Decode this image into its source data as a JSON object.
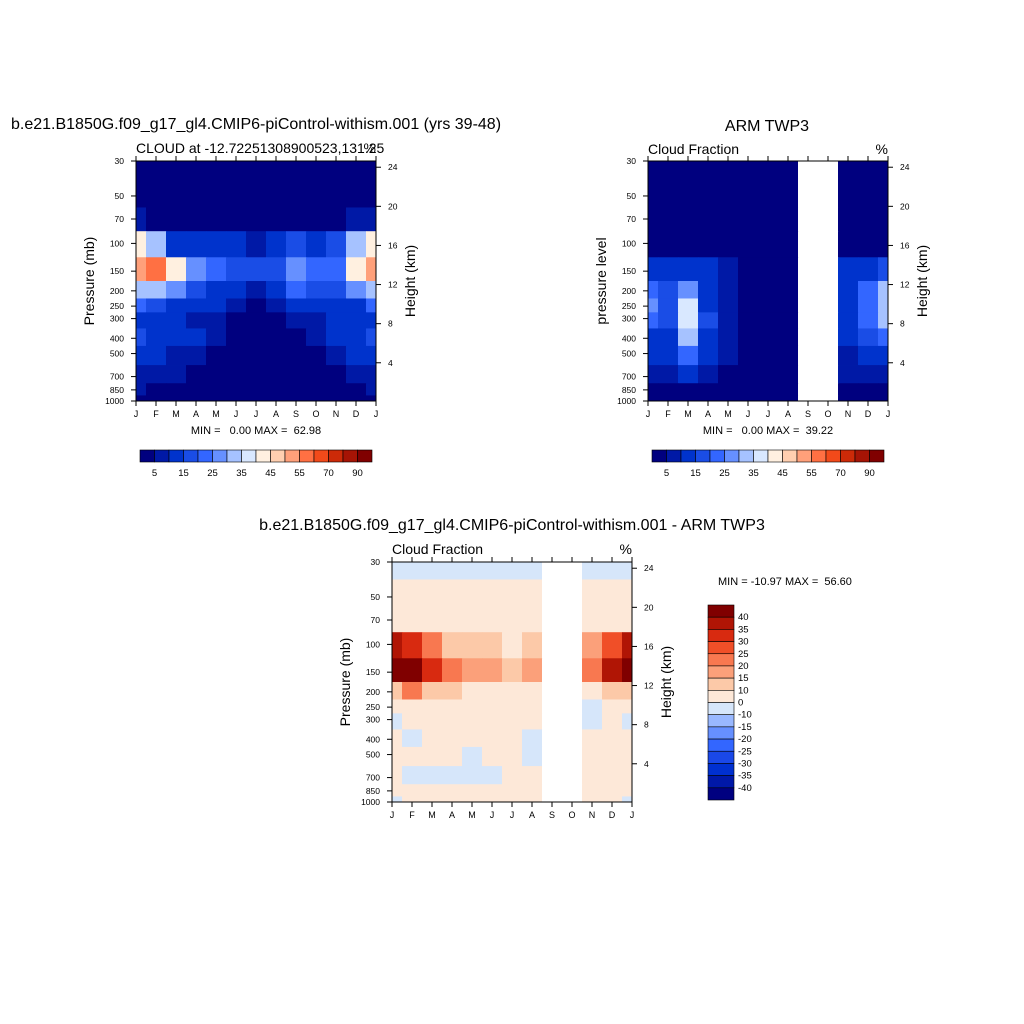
{
  "chart_data": [
    {
      "type": "heatmap",
      "title": "b.e21.B1850G.f09_g17_gl4.CMIP6-piControl-withism.001 (yrs 39-48)",
      "subtitle_left": "CLOUD at -12.72251308900523,131.25",
      "subtitle_right": "%",
      "ylabel": "Pressure (mb)",
      "ylabel_right": "Height (km)",
      "x_ticks": [
        "J",
        "F",
        "M",
        "A",
        "M",
        "J",
        "J",
        "A",
        "S",
        "O",
        "N",
        "D",
        "J"
      ],
      "y_ticks": [
        30,
        50,
        70,
        100,
        150,
        200,
        250,
        300,
        400,
        500,
        700,
        850,
        1000
      ],
      "y_right_ticks": [
        24,
        20,
        16,
        12,
        8,
        4
      ],
      "stats": "MIN =   0.00 MAX =  62.98",
      "min": 0.0,
      "max": 62.98,
      "colorbar": [
        "5",
        "15",
        "25",
        "35",
        "45",
        "55",
        "70",
        "90"
      ],
      "colorbar_levels": [
        5,
        10,
        15,
        20,
        25,
        30,
        35,
        40,
        45,
        50,
        55,
        60,
        70,
        80,
        90
      ],
      "colors": [
        "#00007f",
        "#0019a6",
        "#0033cc",
        "#1a4de6",
        "#3366ff",
        "#6690ff",
        "#a6c2ff",
        "#d9e8ff",
        "#fff0e0",
        "#ffcfb0",
        "#ffa07a",
        "#ff7043",
        "#f24a1a",
        "#cc2a08",
        "#a61405",
        "#800000"
      ],
      "months": [
        "Jan",
        "Feb",
        "Mar",
        "Apr",
        "May",
        "Jun",
        "Jul",
        "Aug",
        "Sep",
        "Oct",
        "Nov",
        "Dec",
        "Jan2"
      ],
      "levels": [
        30,
        50,
        70,
        100,
        150,
        200,
        250,
        300,
        400,
        500,
        700,
        850,
        1000
      ],
      "values": [
        [
          2,
          2,
          2,
          2,
          2,
          2,
          2,
          2,
          2,
          2,
          2,
          2,
          2
        ],
        [
          2,
          2,
          2,
          2,
          2,
          2,
          2,
          2,
          2,
          2,
          2,
          2,
          2
        ],
        [
          8,
          4,
          3,
          2,
          2,
          2,
          2,
          2,
          2,
          2,
          2,
          5,
          8
        ],
        [
          40,
          30,
          14,
          10,
          12,
          10,
          8,
          10,
          16,
          14,
          16,
          32,
          40
        ],
        [
          50,
          58,
          40,
          26,
          20,
          18,
          16,
          18,
          28,
          22,
          24,
          40,
          50
        ],
        [
          30,
          34,
          26,
          18,
          14,
          10,
          9,
          14,
          22,
          16,
          16,
          26,
          30
        ],
        [
          20,
          16,
          14,
          12,
          10,
          5,
          4,
          6,
          12,
          10,
          10,
          14,
          20
        ],
        [
          14,
          12,
          10,
          8,
          5,
          4,
          3,
          3,
          8,
          6,
          10,
          12,
          14
        ],
        [
          16,
          14,
          12,
          10,
          5,
          3,
          2,
          2,
          4,
          8,
          10,
          14,
          16
        ],
        [
          12,
          10,
          8,
          6,
          4,
          2,
          2,
          2,
          2,
          4,
          8,
          10,
          12
        ],
        [
          8,
          6,
          6,
          4,
          3,
          2,
          2,
          2,
          2,
          2,
          4,
          8,
          8
        ],
        [
          6,
          4,
          3,
          3,
          3,
          2,
          3,
          2,
          2,
          2,
          2,
          4,
          6
        ],
        [
          3,
          3,
          2,
          2,
          2,
          2,
          2,
          2,
          2,
          2,
          2,
          2,
          3
        ]
      ]
    },
    {
      "type": "heatmap",
      "title": "ARM TWP3",
      "subtitle_left": "Cloud Fraction",
      "subtitle_right": "%",
      "ylabel": "pressure level",
      "ylabel_right": "Height (km)",
      "x_ticks": [
        "J",
        "F",
        "M",
        "A",
        "M",
        "J",
        "J",
        "A",
        "S",
        "O",
        "N",
        "D",
        "J"
      ],
      "y_ticks": [
        30,
        50,
        70,
        100,
        150,
        200,
        250,
        300,
        400,
        500,
        700,
        850,
        1000
      ],
      "y_right_ticks": [
        24,
        20,
        16,
        12,
        8,
        4
      ],
      "stats": "MIN =   0.00 MAX =  39.22",
      "min": 0.0,
      "max": 39.22,
      "colorbar": [
        "5",
        "15",
        "25",
        "35",
        "45",
        "55",
        "70",
        "90"
      ],
      "missing_months": [
        "Sep",
        "Oct"
      ],
      "values": [
        [
          2,
          2,
          2,
          2,
          2,
          2,
          2,
          2,
          null,
          null,
          2,
          2,
          2
        ],
        [
          2,
          2,
          2,
          2,
          2,
          2,
          2,
          2,
          null,
          null,
          2,
          2,
          2
        ],
        [
          2,
          2,
          2,
          2,
          2,
          2,
          2,
          2,
          null,
          null,
          2,
          2,
          2
        ],
        [
          4,
          4,
          4,
          4,
          2,
          2,
          2,
          2,
          null,
          null,
          3,
          4,
          4
        ],
        [
          14,
          12,
          14,
          10,
          6,
          3,
          2,
          2,
          null,
          null,
          10,
          14,
          16
        ],
        [
          24,
          18,
          28,
          12,
          8,
          4,
          3,
          2,
          null,
          null,
          14,
          22,
          30
        ],
        [
          26,
          18,
          36,
          14,
          8,
          4,
          3,
          2,
          null,
          null,
          14,
          24,
          32
        ],
        [
          22,
          16,
          38,
          16,
          8,
          4,
          3,
          2,
          null,
          null,
          12,
          22,
          30
        ],
        [
          14,
          12,
          30,
          14,
          6,
          3,
          2,
          2,
          null,
          null,
          10,
          18,
          20
        ],
        [
          10,
          10,
          22,
          12,
          5,
          3,
          2,
          2,
          null,
          null,
          8,
          14,
          14
        ],
        [
          6,
          6,
          14,
          8,
          4,
          3,
          2,
          2,
          null,
          null,
          6,
          8,
          8
        ],
        [
          3,
          3,
          4,
          3,
          3,
          2,
          2,
          2,
          null,
          null,
          3,
          3,
          3
        ],
        [
          2,
          2,
          2,
          2,
          2,
          2,
          2,
          2,
          null,
          null,
          2,
          2,
          2
        ]
      ]
    },
    {
      "type": "heatmap",
      "title": "b.e21.B1850G.f09_g17_gl4.CMIP6-piControl-withism.001 - ARM TWP3",
      "subtitle_left": "Cloud Fraction",
      "subtitle_right": "%",
      "ylabel": "Pressure (mb)",
      "ylabel_right": "Height (km)",
      "x_ticks": [
        "J",
        "F",
        "M",
        "A",
        "M",
        "J",
        "J",
        "A",
        "S",
        "O",
        "N",
        "D",
        "J"
      ],
      "y_ticks": [
        30,
        50,
        70,
        100,
        150,
        200,
        250,
        300,
        400,
        500,
        700,
        850,
        1000
      ],
      "y_right_ticks": [
        24,
        20,
        16,
        12,
        8,
        4
      ],
      "stats": "MIN = -10.97 MAX =  56.60",
      "min": -10.97,
      "max": 56.6,
      "colorbar": [
        "40",
        "35",
        "30",
        "25",
        "20",
        "15",
        "10",
        "0",
        "-10",
        "-15",
        "-20",
        "-25",
        "-30",
        "-35",
        "-40"
      ],
      "colorbar_levels": [
        -40,
        -35,
        -30,
        -25,
        -20,
        -15,
        -10,
        0,
        10,
        15,
        20,
        25,
        30,
        35,
        40
      ],
      "colors": [
        "#000080",
        "#0018a8",
        "#0030d0",
        "#1a48e8",
        "#3366ff",
        "#6690ff",
        "#99b8ff",
        "#d6e6fa",
        "#fde8d8",
        "#fcc9a8",
        "#fba07a",
        "#f87850",
        "#f04f28",
        "#d82a10",
        "#b01505",
        "#800000"
      ],
      "missing_months": [
        "Sep",
        "Oct"
      ],
      "values": [
        [
          -2,
          -2,
          -2,
          -2,
          -2,
          -2,
          -2,
          -2,
          null,
          null,
          -2,
          -2,
          -2
        ],
        [
          4,
          4,
          4,
          4,
          4,
          4,
          4,
          4,
          null,
          null,
          4,
          4,
          4
        ],
        [
          6,
          6,
          6,
          6,
          5,
          4,
          4,
          4,
          null,
          null,
          6,
          6,
          6
        ],
        [
          36,
          30,
          22,
          14,
          12,
          10,
          8,
          10,
          null,
          null,
          16,
          28,
          36
        ],
        [
          46,
          50,
          30,
          20,
          16,
          16,
          14,
          18,
          null,
          null,
          20,
          36,
          48
        ],
        [
          14,
          22,
          14,
          10,
          8,
          8,
          6,
          8,
          null,
          null,
          6,
          12,
          14
        ],
        [
          4,
          4,
          4,
          4,
          4,
          4,
          4,
          4,
          null,
          null,
          -1,
          4,
          4
        ],
        [
          -2,
          4,
          4,
          2,
          2,
          2,
          2,
          2,
          null,
          null,
          -1,
          4,
          -2
        ],
        [
          4,
          -2,
          4,
          4,
          2,
          2,
          2,
          -2,
          null,
          null,
          4,
          4,
          4
        ],
        [
          2,
          2,
          2,
          2,
          -2,
          2,
          2,
          -2,
          null,
          null,
          2,
          2,
          2
        ],
        [
          2,
          -2,
          -2,
          -2,
          -2,
          -2,
          2,
          2,
          null,
          null,
          2,
          2,
          2
        ],
        [
          2,
          2,
          2,
          2,
          2,
          2,
          2,
          2,
          null,
          null,
          2,
          2,
          2
        ],
        [
          -2,
          2,
          2,
          2,
          2,
          2,
          2,
          2,
          null,
          null,
          2,
          2,
          -2
        ]
      ]
    }
  ]
}
